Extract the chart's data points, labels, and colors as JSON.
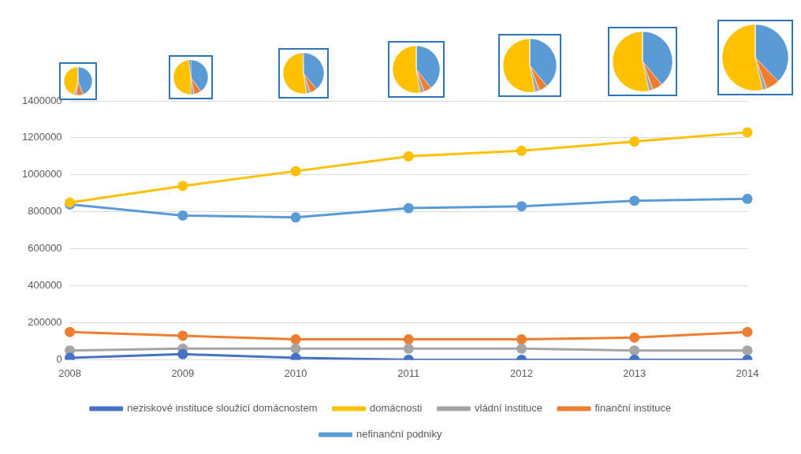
{
  "chart_data": {
    "type": "line",
    "categories": [
      "2008",
      "2009",
      "2010",
      "2011",
      "2012",
      "2013",
      "2014"
    ],
    "series": [
      {
        "name": "nefinanční podniky",
        "color": "#5b9bd5",
        "values": [
          840000,
          780000,
          770000,
          820000,
          830000,
          860000,
          870000
        ]
      },
      {
        "name": "finanční instituce",
        "color": "#ed7d31",
        "values": [
          150000,
          130000,
          110000,
          110000,
          110000,
          120000,
          150000
        ]
      },
      {
        "name": "vládní instituce",
        "color": "#a5a5a5",
        "values": [
          50000,
          60000,
          60000,
          60000,
          60000,
          50000,
          50000
        ]
      },
      {
        "name": "domácnosti",
        "color": "#ffc000",
        "values": [
          850000,
          940000,
          1020000,
          1100000,
          1130000,
          1180000,
          1230000
        ]
      },
      {
        "name": "neziskové instituce sloužicí domácnostem",
        "color": "#4472c4",
        "values": [
          10000,
          30000,
          10000,
          0,
          0,
          0,
          0
        ]
      }
    ],
    "ylim": [
      0,
      1400000
    ],
    "yticks": [
      0,
      200000,
      400000,
      600000,
      800000,
      1000000,
      1200000,
      1400000
    ],
    "grid": "y",
    "legend": "bottom",
    "marker": "circle",
    "line_style": "solid"
  }
}
